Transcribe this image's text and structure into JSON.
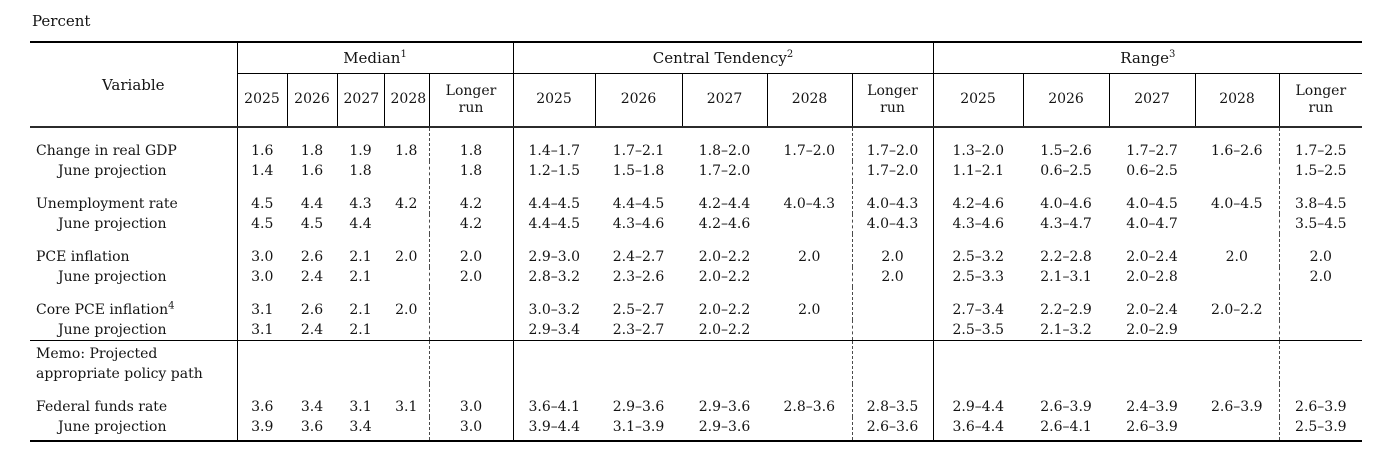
{
  "units_label": "Percent",
  "table": {
    "variable_header": "Variable",
    "groups": [
      {
        "label": "Median",
        "sup": "1"
      },
      {
        "label": "Central Tendency",
        "sup": "2"
      },
      {
        "label": "Range",
        "sup": "3"
      }
    ],
    "year_headers": [
      "2025",
      "2026",
      "2027",
      "2028",
      "Longer run"
    ],
    "rows": [
      {
        "type": "data",
        "label": "Change in real GDP",
        "sup": "",
        "indent": false,
        "pair_start": true,
        "median": [
          "1.6",
          "1.8",
          "1.9",
          "1.8",
          "1.8"
        ],
        "central_tendency": [
          "1.4–1.7",
          "1.7–2.1",
          "1.8–2.0",
          "1.7–2.0",
          "1.7–2.0"
        ],
        "range": [
          "1.3–2.0",
          "1.5–2.6",
          "1.7–2.7",
          "1.6–2.6",
          "1.7–2.5"
        ]
      },
      {
        "type": "data",
        "label": "June projection",
        "sup": "",
        "indent": true,
        "pair_start": false,
        "median": [
          "1.4",
          "1.6",
          "1.8",
          "",
          "1.8"
        ],
        "central_tendency": [
          "1.2–1.5",
          "1.5–1.8",
          "1.7–2.0",
          "",
          "1.7–2.0"
        ],
        "range": [
          "1.1–2.1",
          "0.6–2.5",
          "0.6–2.5",
          "",
          "1.5–2.5"
        ]
      },
      {
        "type": "data",
        "label": "Unemployment rate",
        "sup": "",
        "indent": false,
        "pair_start": true,
        "median": [
          "4.5",
          "4.4",
          "4.3",
          "4.2",
          "4.2"
        ],
        "central_tendency": [
          "4.4–4.5",
          "4.4–4.5",
          "4.2–4.4",
          "4.0–4.3",
          "4.0–4.3"
        ],
        "range": [
          "4.2–4.6",
          "4.0–4.6",
          "4.0–4.5",
          "4.0–4.5",
          "3.8–4.5"
        ]
      },
      {
        "type": "data",
        "label": "June projection",
        "sup": "",
        "indent": true,
        "pair_start": false,
        "median": [
          "4.5",
          "4.5",
          "4.4",
          "",
          "4.2"
        ],
        "central_tendency": [
          "4.4–4.5",
          "4.3–4.6",
          "4.2–4.6",
          "",
          "4.0–4.3"
        ],
        "range": [
          "4.3–4.6",
          "4.3–4.7",
          "4.0–4.7",
          "",
          "3.5–4.5"
        ]
      },
      {
        "type": "data",
        "label": "PCE inflation",
        "sup": "",
        "indent": false,
        "pair_start": true,
        "median": [
          "3.0",
          "2.6",
          "2.1",
          "2.0",
          "2.0"
        ],
        "central_tendency": [
          "2.9–3.0",
          "2.4–2.7",
          "2.0–2.2",
          "2.0",
          "2.0"
        ],
        "range": [
          "2.5–3.2",
          "2.2–2.8",
          "2.0–2.4",
          "2.0",
          "2.0"
        ]
      },
      {
        "type": "data",
        "label": "June projection",
        "sup": "",
        "indent": true,
        "pair_start": false,
        "median": [
          "3.0",
          "2.4",
          "2.1",
          "",
          "2.0"
        ],
        "central_tendency": [
          "2.8–3.2",
          "2.3–2.6",
          "2.0–2.2",
          "",
          "2.0"
        ],
        "range": [
          "2.5–3.3",
          "2.1–3.1",
          "2.0–2.8",
          "",
          "2.0"
        ]
      },
      {
        "type": "data",
        "label": "Core PCE inflation",
        "sup": "4",
        "indent": false,
        "pair_start": true,
        "median": [
          "3.1",
          "2.6",
          "2.1",
          "2.0",
          ""
        ],
        "central_tendency": [
          "3.0–3.2",
          "2.5–2.7",
          "2.0–2.2",
          "2.0",
          ""
        ],
        "range": [
          "2.7–3.4",
          "2.2–2.9",
          "2.0–2.4",
          "2.0–2.2",
          ""
        ]
      },
      {
        "type": "data",
        "label": "June projection",
        "sup": "",
        "indent": true,
        "pair_start": false,
        "median": [
          "3.1",
          "2.4",
          "2.1",
          "",
          ""
        ],
        "central_tendency": [
          "2.9–3.4",
          "2.3–2.7",
          "2.0–2.2",
          "",
          ""
        ],
        "range": [
          "2.5–3.5",
          "2.1–3.2",
          "2.0–2.9",
          "",
          ""
        ]
      },
      {
        "type": "memo",
        "label_lines": [
          "Memo: Projected",
          "appropriate policy path"
        ],
        "median": [
          "",
          "",
          "",
          "",
          ""
        ],
        "central_tendency": [
          "",
          "",
          "",
          "",
          ""
        ],
        "range": [
          "",
          "",
          "",
          "",
          ""
        ]
      },
      {
        "type": "data",
        "label": "Federal funds rate",
        "sup": "",
        "indent": false,
        "pair_start": true,
        "median": [
          "3.6",
          "3.4",
          "3.1",
          "3.1",
          "3.0"
        ],
        "central_tendency": [
          "3.6–4.1",
          "2.9–3.6",
          "2.9–3.6",
          "2.8–3.6",
          "2.8–3.5"
        ],
        "range": [
          "2.9–4.4",
          "2.6–3.9",
          "2.4–3.9",
          "2.6–3.9",
          "2.6–3.9"
        ]
      },
      {
        "type": "data",
        "label": "June projection",
        "sup": "",
        "indent": true,
        "pair_start": false,
        "median": [
          "3.9",
          "3.6",
          "3.4",
          "",
          "3.0"
        ],
        "central_tendency": [
          "3.9–4.4",
          "3.1–3.9",
          "2.9–3.6",
          "",
          "2.6–3.6"
        ],
        "range": [
          "3.6–4.4",
          "2.6–4.1",
          "2.6–3.9",
          "",
          "2.5–3.9"
        ]
      }
    ]
  }
}
